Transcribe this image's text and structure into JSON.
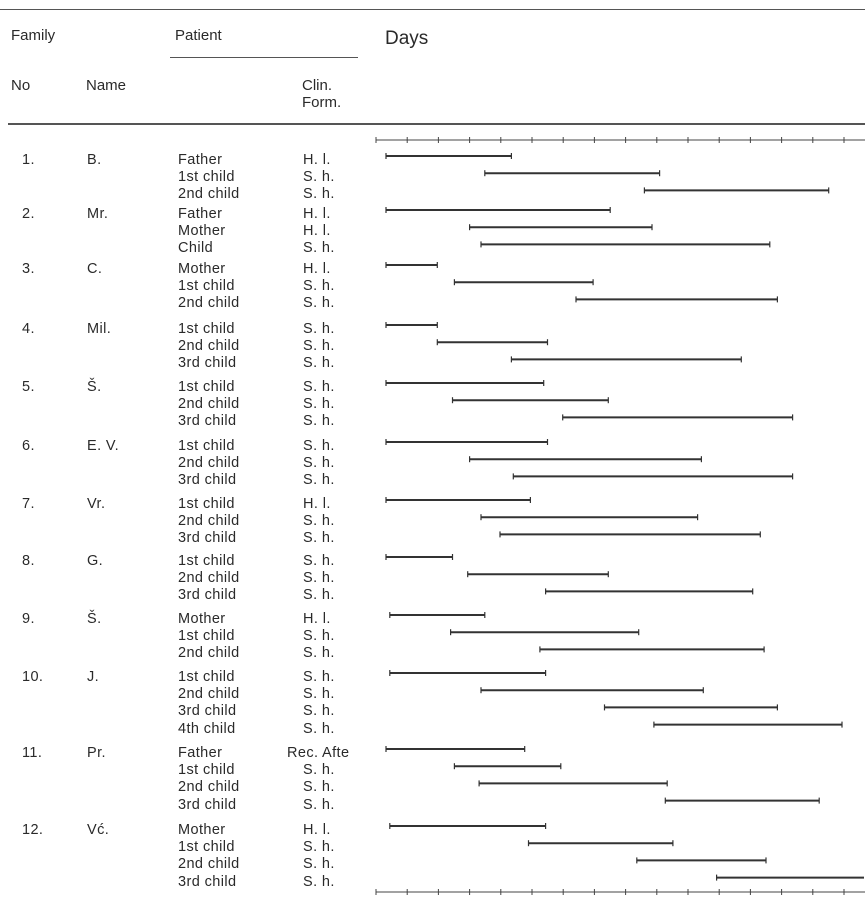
{
  "header": {
    "family": "Family",
    "patient": "Patient",
    "days": "Days",
    "no": "No",
    "name": "Name",
    "clin_form": [
      "Clin.",
      "Form."
    ]
  },
  "families": [
    {
      "no": "1.",
      "name": "B.",
      "patients": [
        {
          "label": "Father",
          "form": "H. l.",
          "bar": [
            0.0,
            0.33
          ]
        },
        {
          "label": "1st child",
          "form": "S. h.",
          "bar": [
            0.26,
            0.72
          ]
        },
        {
          "label": "2nd child",
          "form": "S. h.",
          "bar": [
            0.68,
            1.165
          ]
        }
      ]
    },
    {
      "no": "2.",
      "name": "Mr.",
      "patients": [
        {
          "label": "Father",
          "form": "H. l.",
          "bar": [
            0.0,
            0.59
          ]
        },
        {
          "label": "Mother",
          "form": "H. l.",
          "bar": [
            0.22,
            0.7
          ]
        },
        {
          "label": "Child",
          "form": "S. h.",
          "bar": [
            0.25,
            1.01
          ]
        }
      ]
    },
    {
      "no": "3.",
      "name": "C.",
      "patients": [
        {
          "label": "Mother",
          "form": "H. l.",
          "bar": [
            0.0,
            0.135
          ]
        },
        {
          "label": "1st child",
          "form": "S. h.",
          "bar": [
            0.18,
            0.545
          ]
        },
        {
          "label": "2nd child",
          "form": "S. h.",
          "bar": [
            0.5,
            1.03
          ]
        }
      ]
    },
    {
      "no": "4.",
      "name": "Mil.",
      "patients": [
        {
          "label": "1st child",
          "form": "S. h.",
          "bar": [
            0.0,
            0.135
          ]
        },
        {
          "label": "2nd child",
          "form": "S. h.",
          "bar": [
            0.135,
            0.425
          ]
        },
        {
          "label": "3rd child",
          "form": "S. h.",
          "bar": [
            0.33,
            0.935
          ]
        }
      ]
    },
    {
      "no": "5.",
      "name": "Š.",
      "patients": [
        {
          "label": "1st child",
          "form": "S. h.",
          "bar": [
            0.0,
            0.415
          ]
        },
        {
          "label": "2nd child",
          "form": "S. h.",
          "bar": [
            0.175,
            0.585
          ]
        },
        {
          "label": "3rd child",
          "form": "S. h.",
          "bar": [
            0.465,
            1.07
          ]
        }
      ]
    },
    {
      "no": "6.",
      "name": "E. V.",
      "patients": [
        {
          "label": "1st child",
          "form": "S. h.",
          "bar": [
            0.0,
            0.425
          ]
        },
        {
          "label": "2nd child",
          "form": "S. h.",
          "bar": [
            0.22,
            0.83
          ]
        },
        {
          "label": "3rd child",
          "form": "S. h.",
          "bar": [
            0.335,
            1.07
          ]
        }
      ]
    },
    {
      "no": "7.",
      "name": "Vr.",
      "patients": [
        {
          "label": "1st child",
          "form": "H. l.",
          "bar": [
            0.0,
            0.38
          ]
        },
        {
          "label": "2nd child",
          "form": "S. h.",
          "bar": [
            0.25,
            0.82
          ]
        },
        {
          "label": "3rd child",
          "form": "S. h.",
          "bar": [
            0.3,
            0.985
          ]
        }
      ]
    },
    {
      "no": "8.",
      "name": "G.",
      "patients": [
        {
          "label": "1st child",
          "form": "S. h.",
          "bar": [
            0.0,
            0.175
          ]
        },
        {
          "label": "2nd child",
          "form": "S. h.",
          "bar": [
            0.215,
            0.585
          ]
        },
        {
          "label": "3rd child",
          "form": "S. h.",
          "bar": [
            0.42,
            0.965
          ]
        }
      ]
    },
    {
      "no": "9.",
      "name": "Š.",
      "patients": [
        {
          "label": "Mother",
          "form": "H. l.",
          "bar": [
            0.01,
            0.26
          ]
        },
        {
          "label": "1st child",
          "form": "S. h.",
          "bar": [
            0.17,
            0.665
          ]
        },
        {
          "label": "2nd child",
          "form": "S. h.",
          "bar": [
            0.405,
            0.995
          ]
        }
      ]
    },
    {
      "no": "10.",
      "name": "J.",
      "patients": [
        {
          "label": "1st child",
          "form": "S. h.",
          "bar": [
            0.01,
            0.42
          ]
        },
        {
          "label": "2nd child",
          "form": "S. h.",
          "bar": [
            0.25,
            0.835
          ]
        },
        {
          "label": "3rd child",
          "form": "S. h.",
          "bar": [
            0.575,
            1.03
          ]
        },
        {
          "label": "4th child",
          "form": "S. h.",
          "bar": [
            0.705,
            1.2
          ]
        }
      ]
    },
    {
      "no": "11.",
      "name": "Pr.",
      "patients": [
        {
          "label": "Father",
          "form": "Rec. Afte",
          "bar": [
            0.0,
            0.365
          ]
        },
        {
          "label": "1st child",
          "form": "S. h.",
          "bar": [
            0.18,
            0.46
          ]
        },
        {
          "label": "2nd child",
          "form": "S. h.",
          "bar": [
            0.245,
            0.74
          ]
        },
        {
          "label": "3rd child",
          "form": "S. h.",
          "bar": [
            0.735,
            1.14
          ]
        }
      ]
    },
    {
      "no": "12.",
      "name": "Vć.",
      "patients": [
        {
          "label": "Mother",
          "form": "H. l.",
          "bar": [
            0.01,
            0.42
          ]
        },
        {
          "label": "1st child",
          "form": "S. h.",
          "bar": [
            0.375,
            0.755
          ]
        },
        {
          "label": "2nd child",
          "form": "S. h.",
          "bar": [
            0.66,
            1.0
          ]
        },
        {
          "label": "3rd child",
          "form": "S. h.",
          "bar": [
            0.87,
            1.26
          ]
        }
      ]
    }
  ]
}
